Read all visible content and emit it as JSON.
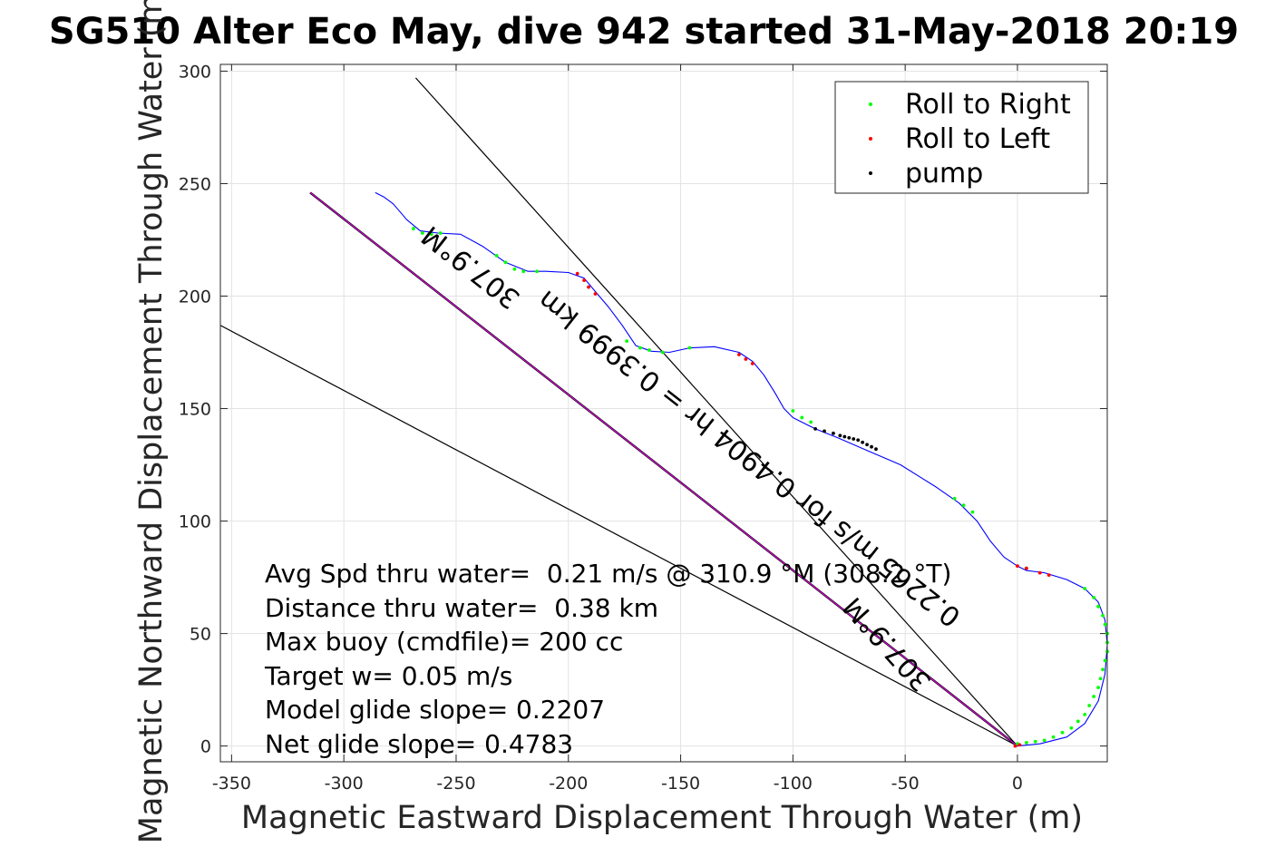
{
  "chart_data": {
    "type": "scatter",
    "title": "SG510 Alter Eco May, dive 942 started 31-May-2018 20:19",
    "xlabel": "Magnetic Eastward Displacement Through Water (m)",
    "ylabel": "Magnetic Northward Displacement Through Water (m)",
    "xlim": [
      -355,
      40
    ],
    "ylim": [
      -7,
      303
    ],
    "grid": true,
    "legend_position": "top-right",
    "xticks": [
      "-350",
      "-300",
      "-250",
      "-200",
      "-150",
      "-100",
      "-50",
      "0"
    ],
    "yticks": [
      "0",
      "50",
      "100",
      "150",
      "200",
      "250",
      "300"
    ],
    "legend": [
      {
        "label": "Roll to Right",
        "color": "#00ff00"
      },
      {
        "label": "Roll to Left",
        "color": "#ff0000"
      },
      {
        "label": "pump",
        "color": "#000000"
      }
    ],
    "track": {
      "color": "#0000ff",
      "points": [
        [
          0,
          0
        ],
        [
          10,
          1
        ],
        [
          22,
          4
        ],
        [
          30,
          10
        ],
        [
          36,
          20
        ],
        [
          39,
          32
        ],
        [
          40,
          45
        ],
        [
          39,
          56
        ],
        [
          36,
          64
        ],
        [
          30,
          70
        ],
        [
          22,
          74
        ],
        [
          12,
          77
        ],
        [
          4,
          78
        ],
        [
          0,
          80
        ],
        [
          -6,
          84
        ],
        [
          -12,
          91
        ],
        [
          -18,
          100
        ],
        [
          -26,
          108
        ],
        [
          -36,
          115
        ],
        [
          -52,
          125
        ],
        [
          -66,
          131
        ],
        [
          -80,
          137
        ],
        [
          -90,
          141
        ],
        [
          -100,
          146
        ],
        [
          -104,
          150
        ],
        [
          -108,
          157
        ],
        [
          -113,
          165
        ],
        [
          -118,
          171
        ],
        [
          -124,
          175
        ],
        [
          -135,
          177.5
        ],
        [
          -146,
          177
        ],
        [
          -155,
          175
        ],
        [
          -163,
          175.5
        ],
        [
          -170,
          178
        ],
        [
          -176,
          187
        ],
        [
          -182,
          195
        ],
        [
          -188,
          202
        ],
        [
          -193,
          208
        ],
        [
          -200,
          210.5
        ],
        [
          -210,
          211
        ],
        [
          -218,
          211
        ],
        [
          -228,
          215
        ],
        [
          -238,
          222
        ],
        [
          -248,
          227.5
        ],
        [
          -258,
          228
        ],
        [
          -266,
          229
        ],
        [
          -272,
          234
        ],
        [
          -278,
          241
        ],
        [
          -282,
          244
        ],
        [
          -286,
          246
        ]
      ]
    },
    "roll_right_points": [
      [
        -269,
        230
      ],
      [
        -265,
        228
      ],
      [
        -261,
        227.5
      ],
      [
        -257,
        228
      ],
      [
        -232,
        218
      ],
      [
        -228,
        215
      ],
      [
        -224,
        212
      ],
      [
        -220,
        211
      ],
      [
        -214,
        211
      ],
      [
        -174,
        180
      ],
      [
        -168,
        177
      ],
      [
        -164,
        176
      ],
      [
        -158,
        175
      ],
      [
        -146,
        177
      ],
      [
        -100,
        149
      ],
      [
        -96,
        146
      ],
      [
        -92,
        144
      ],
      [
        -28,
        110
      ],
      [
        -24,
        107
      ],
      [
        -20,
        104
      ],
      [
        4,
        79
      ],
      [
        30,
        70
      ],
      [
        34,
        66
      ],
      [
        36,
        62
      ],
      [
        38,
        58
      ],
      [
        39,
        54
      ],
      [
        40,
        50
      ],
      [
        40,
        46
      ],
      [
        40,
        42
      ],
      [
        39,
        38
      ],
      [
        38,
        34
      ],
      [
        37,
        30
      ],
      [
        36,
        26
      ],
      [
        34,
        22
      ],
      [
        32,
        18
      ],
      [
        30,
        14
      ],
      [
        27,
        11
      ],
      [
        24,
        8
      ],
      [
        20,
        6
      ],
      [
        16,
        4
      ],
      [
        12,
        2.5
      ],
      [
        8,
        2
      ],
      [
        4,
        1.5
      ],
      [
        0,
        1
      ]
    ],
    "roll_left_points": [
      [
        -196,
        210
      ],
      [
        -193,
        207
      ],
      [
        -191,
        204
      ],
      [
        -188,
        201
      ],
      [
        -124,
        174
      ],
      [
        -121,
        172
      ],
      [
        -118,
        170
      ],
      [
        0,
        80
      ],
      [
        4,
        79
      ],
      [
        10,
        77
      ],
      [
        14,
        76
      ],
      [
        -1,
        0
      ],
      [
        1,
        0.5
      ]
    ],
    "pump_points": [
      [
        -90,
        141
      ],
      [
        -86,
        140
      ],
      [
        -82,
        139
      ],
      [
        -79,
        138
      ],
      [
        -77,
        137.5
      ],
      [
        -75,
        137
      ],
      [
        -73,
        136.5
      ],
      [
        -71,
        136
      ],
      [
        -69,
        135
      ],
      [
        -67,
        134
      ],
      [
        -65,
        133
      ],
      [
        -63,
        132
      ]
    ],
    "magenta_line": [
      [
        0,
        0
      ],
      [
        -315,
        246
      ]
    ],
    "black_lines": [
      [
        [
          0,
          0
        ],
        [
          -268,
          297
        ]
      ],
      [
        [
          0,
          0
        ],
        [
          -355,
          187
        ]
      ]
    ],
    "line_labels": [
      {
        "text": "307.9°M",
        "x": -241,
        "y": 216,
        "angle": 218
      },
      {
        "text": "0.2265 m/s for 0.4904 hr = 0.3999 km",
        "x": -117,
        "y": 131,
        "angle": 218
      },
      {
        "text": "307.9°M",
        "x": -55,
        "y": 48,
        "angle": 228
      }
    ],
    "annotations": [
      "Avg Spd thru water=  0.21 m/s @ 310.9 °M (308.2 °T)",
      "Distance thru water=  0.38 km",
      "Max buoy (cmdfile)= 200 cc",
      "Target w= 0.05 m/s",
      "Model glide slope= 0.2207",
      "Net glide slope= 0.4783"
    ]
  }
}
